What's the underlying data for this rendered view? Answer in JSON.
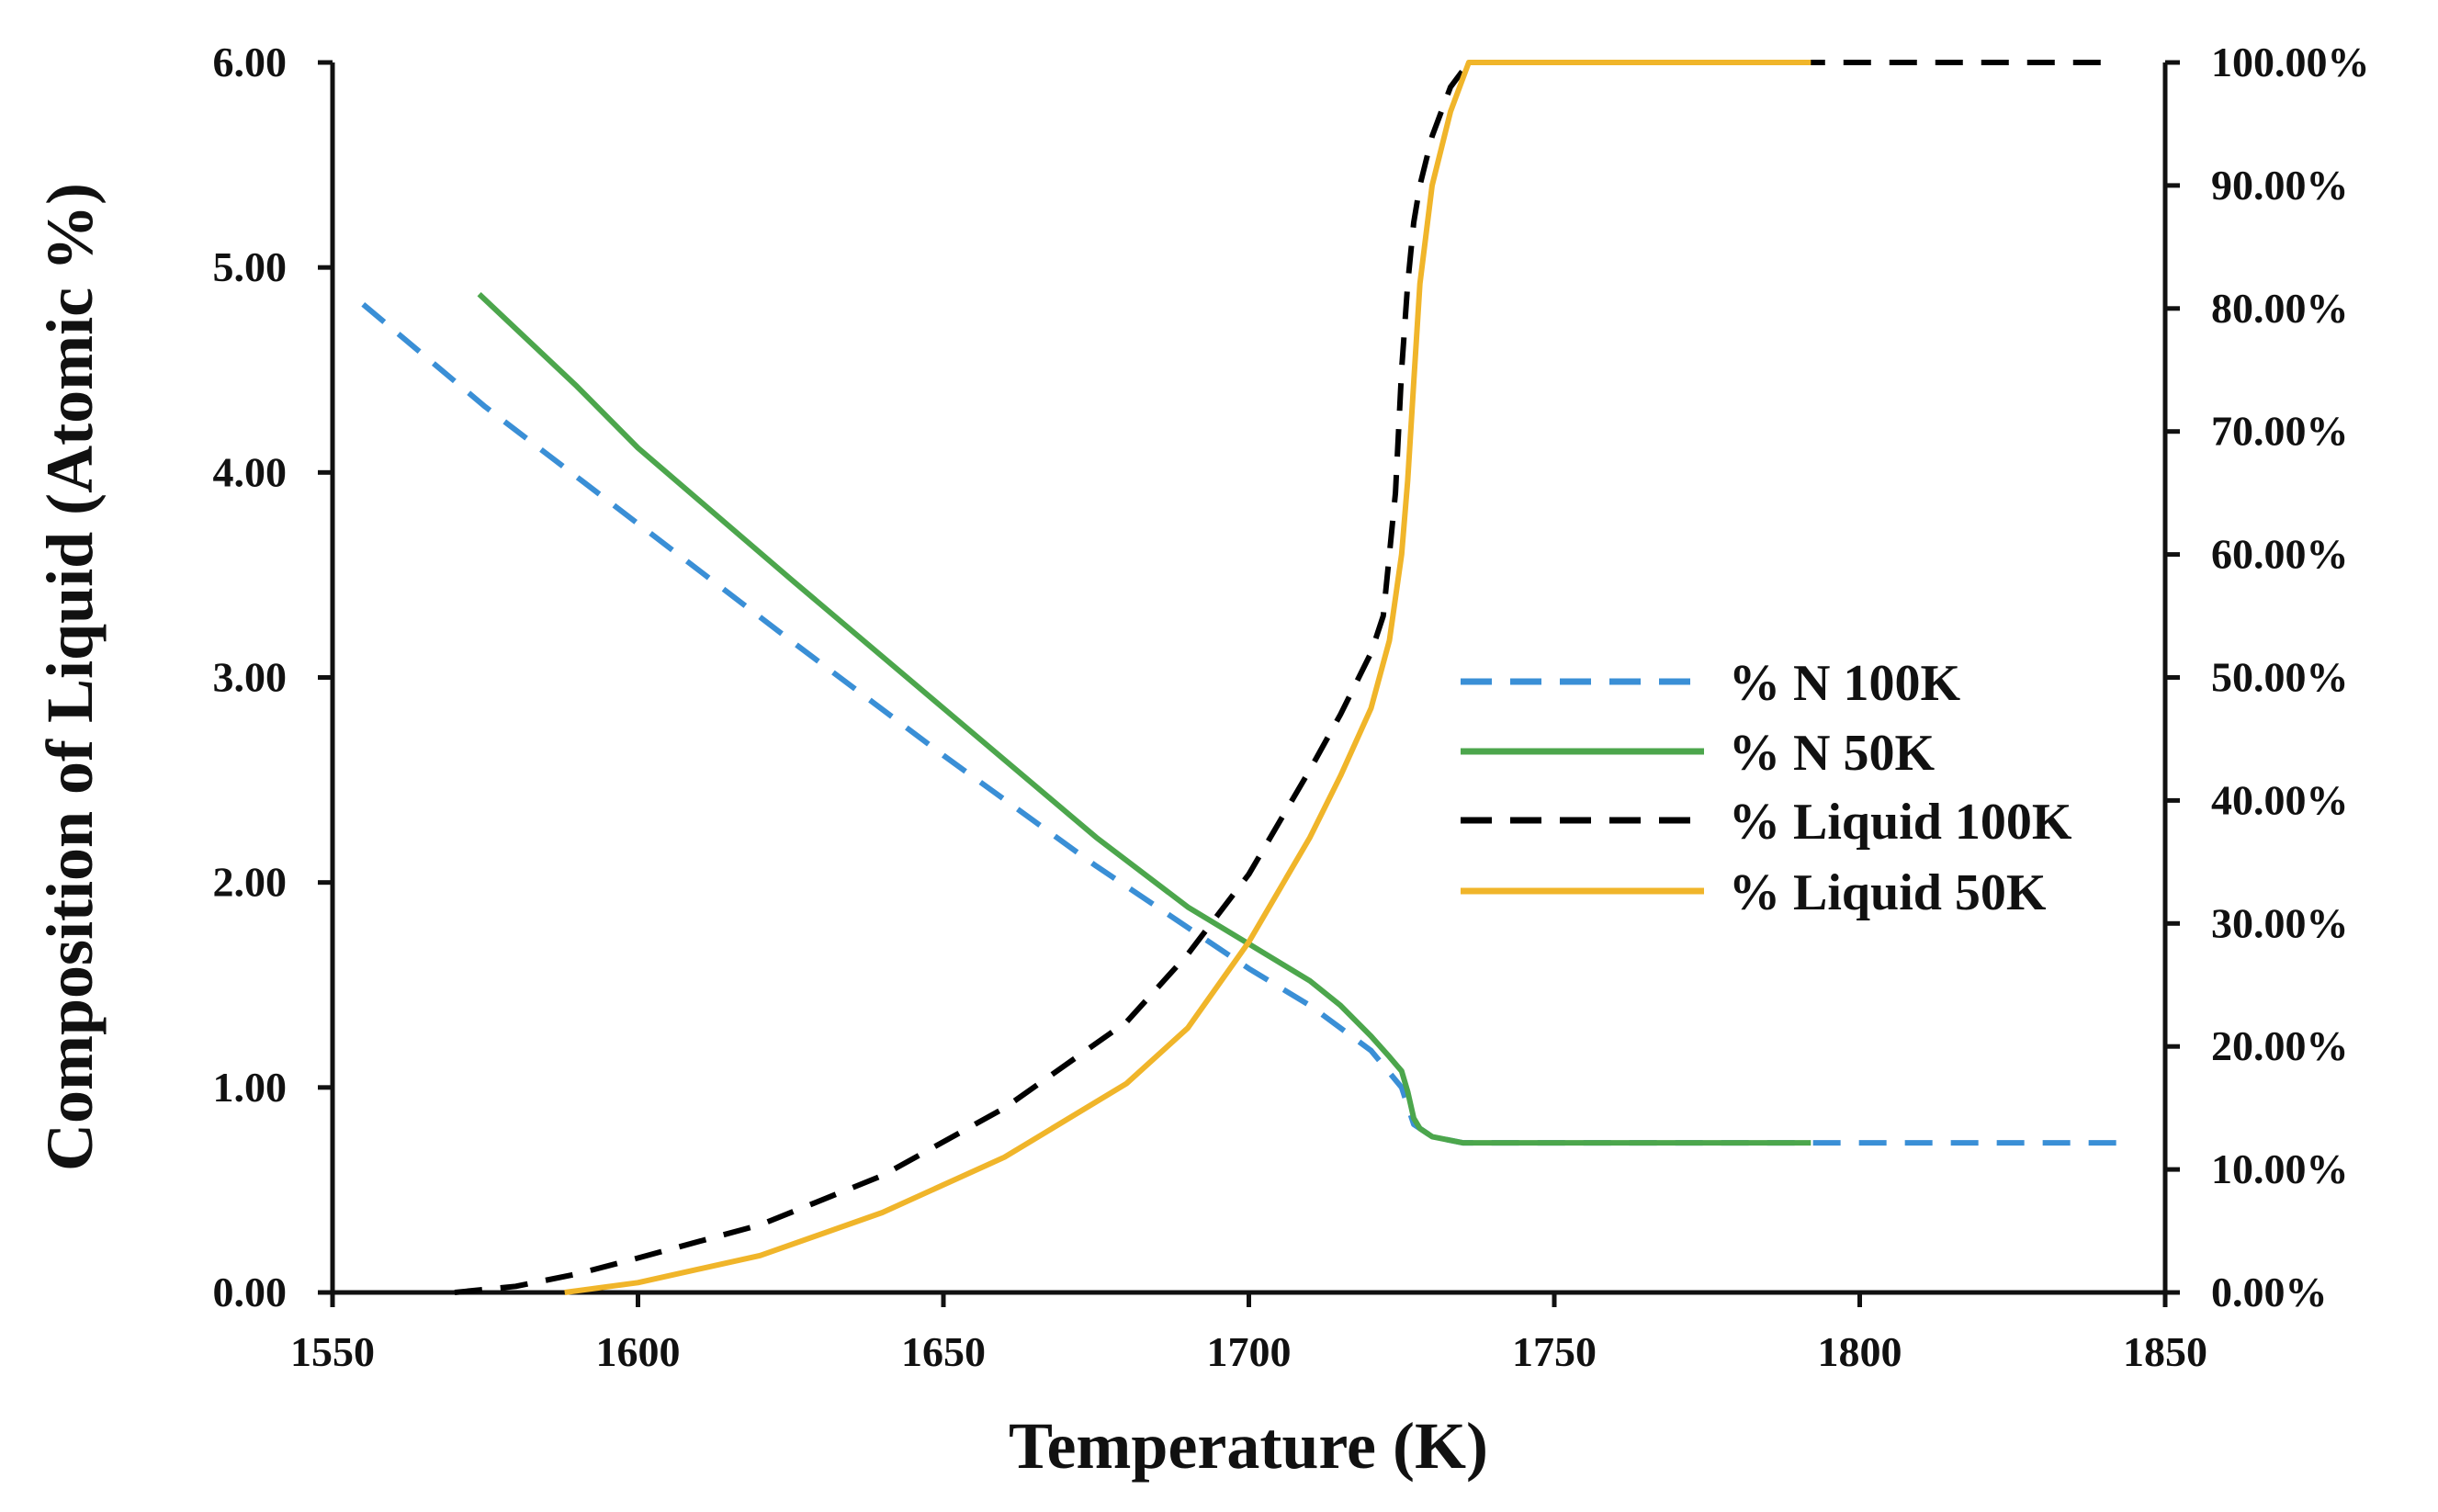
{
  "chart_data": {
    "type": "line",
    "title": "",
    "xlabel": "Temperature (K)",
    "ylabel": "Composition of Liquid (Atomic %)",
    "y2label": "",
    "xlim": [
      1550,
      1850
    ],
    "ylim": [
      0,
      6
    ],
    "y2lim": [
      0,
      100
    ],
    "xticks": [
      "1550",
      "1600",
      "1650",
      "1700",
      "1750",
      "1800",
      "1850"
    ],
    "yticks": [
      "0.00",
      "1.00",
      "2.00",
      "3.00",
      "4.00",
      "5.00",
      "6.00"
    ],
    "y2ticks": [
      "0.00%",
      "10.00%",
      "20.00%",
      "30.00%",
      "40.00%",
      "50.00%",
      "60.00%",
      "70.00%",
      "80.00%",
      "90.00%",
      "100.00%"
    ],
    "grid": false,
    "legend_position": "center-right",
    "series": [
      {
        "name": "% N 100K",
        "axis": "left",
        "color": "#3a8fd6",
        "dash": true,
        "x": [
          1555,
          1575,
          1600,
          1625,
          1650,
          1675,
          1700,
          1710,
          1720,
          1725,
          1727,
          1730,
          1735,
          1750,
          1800,
          1842
        ],
        "y": [
          4.82,
          4.32,
          3.75,
          3.18,
          2.62,
          2.08,
          1.58,
          1.4,
          1.18,
          1.0,
          0.82,
          0.76,
          0.73,
          0.73,
          0.73,
          0.73
        ]
      },
      {
        "name": "% N 50K",
        "axis": "left",
        "color": "#4ca64c",
        "dash": false,
        "x": [
          1574,
          1590,
          1600,
          1625,
          1650,
          1675,
          1690,
          1700,
          1710,
          1715,
          1720,
          1723,
          1725,
          1726,
          1727,
          1728,
          1730,
          1735,
          1750,
          1792
        ],
        "y": [
          4.87,
          4.42,
          4.12,
          3.48,
          2.85,
          2.22,
          1.88,
          1.7,
          1.52,
          1.4,
          1.25,
          1.15,
          1.08,
          0.98,
          0.85,
          0.8,
          0.76,
          0.73,
          0.73,
          0.73
        ]
      },
      {
        "name": "% Liquid 100K",
        "axis": "right",
        "color": "#000000",
        "dash": true,
        "x": [
          1570,
          1580,
          1590,
          1600,
          1620,
          1640,
          1660,
          1680,
          1690,
          1700,
          1710,
          1715,
          1720,
          1722,
          1723,
          1724,
          1725,
          1726,
          1727,
          1728,
          1730,
          1733,
          1736,
          1740,
          1800,
          1842
        ],
        "y": [
          0,
          0.5,
          1.5,
          2.8,
          5.5,
          9.5,
          15.0,
          22.0,
          27.5,
          34.0,
          42.5,
          47.0,
          52.0,
          55.0,
          60.0,
          65.0,
          75.0,
          82.0,
          87.0,
          90.0,
          94.0,
          98.0,
          100,
          100,
          100,
          100
        ]
      },
      {
        "name": "% Liquid 50K",
        "axis": "right",
        "color": "#f0b52a",
        "dash": false,
        "x": [
          1588,
          1600,
          1620,
          1640,
          1660,
          1680,
          1690,
          1700,
          1710,
          1715,
          1720,
          1723,
          1725,
          1726,
          1727,
          1728,
          1730,
          1733,
          1736,
          1740,
          1760,
          1792
        ],
        "y": [
          0,
          0.8,
          3.0,
          6.5,
          11.0,
          17.0,
          21.5,
          28.5,
          37.0,
          42.0,
          47.5,
          53.0,
          60.0,
          66.0,
          74.0,
          82.0,
          90.0,
          96.0,
          100,
          100,
          100,
          100
        ]
      }
    ]
  }
}
